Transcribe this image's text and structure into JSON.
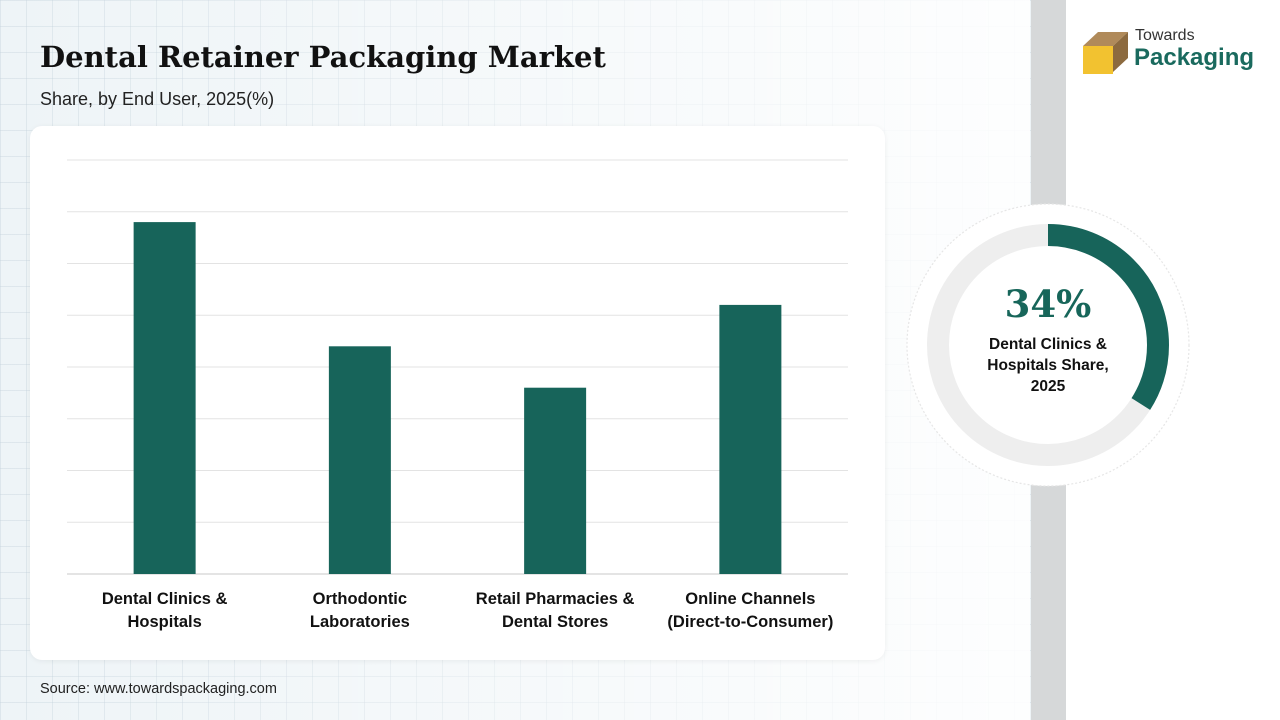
{
  "header": {
    "title": "Dental Retainer Packaging Market",
    "subtitle": "Share, by End User, 2025(%)"
  },
  "brand": {
    "logo_top": "Towards",
    "logo_bottom": "Packaging",
    "accent_color": "#17645A"
  },
  "source": "Source: www.towardspackaging.com",
  "highlight": {
    "value": "34%",
    "label": "Dental Clinics & Hospitals Share, 2025",
    "fraction": 0.34
  },
  "chart_data": {
    "type": "bar",
    "categories": [
      [
        "Dental Clinics &",
        "Hospitals"
      ],
      [
        "Orthodontic",
        "Laboratories"
      ],
      [
        "Retail Pharmacies &",
        "Dental Stores"
      ],
      [
        "Online Channels",
        "(Direct-to-Consumer)"
      ]
    ],
    "values": [
      34,
      22,
      18,
      26
    ],
    "ylim": [
      0,
      40
    ],
    "grid": true,
    "bar_color": "#17645A",
    "title": "",
    "xlabel": "",
    "ylabel": ""
  }
}
